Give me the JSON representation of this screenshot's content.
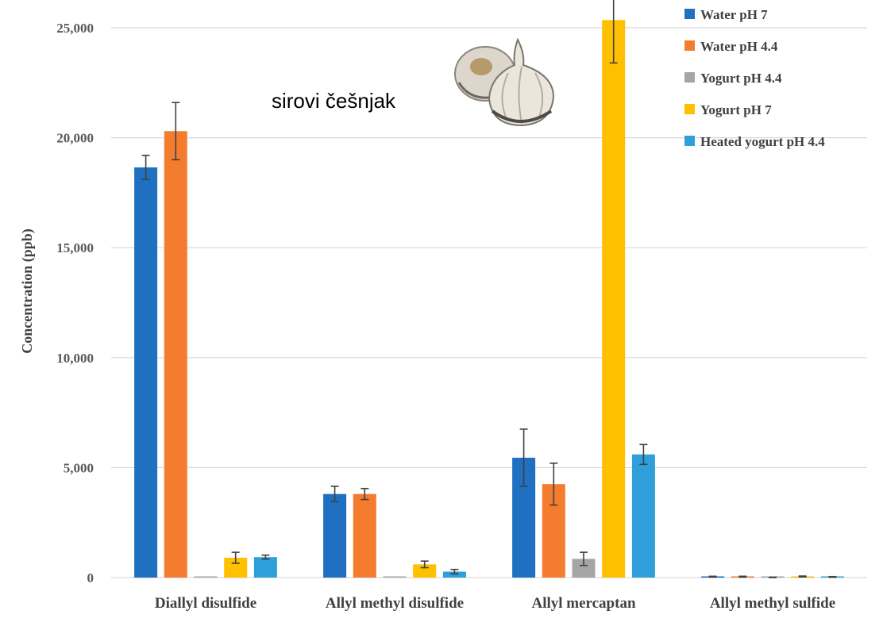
{
  "chart_data": {
    "type": "bar",
    "ylabel": "Concentration (ppb)",
    "ylim": [
      0,
      25000
    ],
    "yticks": [
      0,
      5000,
      10000,
      15000,
      20000,
      25000
    ],
    "ytick_labels": [
      "0",
      "5,000",
      "10,000",
      "15,000",
      "20,000",
      "25,000"
    ],
    "grid": true,
    "legend_position": "top-right",
    "categories": [
      "Diallyl disulfide",
      "Allyl methyl disulfide",
      "Allyl mercaptan",
      "Allyl methyl sulfide"
    ],
    "series": [
      {
        "name": "Water pH 7",
        "color": "#1f70c1",
        "values": [
          18650,
          3800,
          5450,
          40
        ],
        "errors": [
          550,
          350,
          1300,
          20
        ]
      },
      {
        "name": "Water pH 4.4",
        "color": "#f47c2f",
        "values": [
          20300,
          3800,
          4250,
          40
        ],
        "errors": [
          1300,
          250,
          950,
          20
        ]
      },
      {
        "name": "Yogurt pH 4.4",
        "color": "#a5a5a5",
        "values": [
          0,
          0,
          850,
          10
        ],
        "errors": [
          0,
          0,
          300,
          10
        ]
      },
      {
        "name": "Yogurt pH 7",
        "color": "#ffc000",
        "values": [
          900,
          600,
          25350,
          50
        ],
        "errors": [
          250,
          150,
          1950,
          20
        ]
      },
      {
        "name": "Heated yogurt pH 4.4",
        "color": "#2e9fd8",
        "values": [
          930,
          270,
          5600,
          30
        ],
        "errors": [
          90,
          100,
          450,
          15
        ]
      }
    ],
    "annotations": [
      {
        "text": "sirovi češnjak"
      }
    ]
  },
  "decor": {
    "illustration": "garlic-bulbs-image"
  }
}
